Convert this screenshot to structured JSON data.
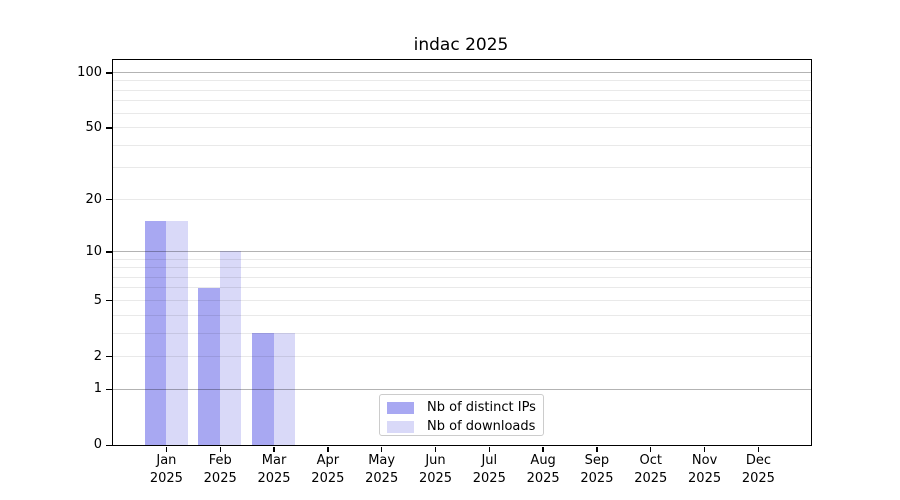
{
  "title": "indac 2025",
  "chart_data": {
    "type": "bar",
    "title": "indac 2025",
    "categories": [
      "Jan",
      "Feb",
      "Mar",
      "Apr",
      "May",
      "Jun",
      "Jul",
      "Aug",
      "Sep",
      "Oct",
      "Nov",
      "Dec"
    ],
    "year_label": "2025",
    "series": [
      {
        "name": "Nb of distinct IPs",
        "color": "#a8a8f2",
        "values": [
          15,
          6,
          3,
          0,
          0,
          0,
          0,
          0,
          0,
          0,
          0,
          0
        ]
      },
      {
        "name": "Nb of downloads",
        "color": "#d9d9f8",
        "values": [
          15,
          10,
          3,
          0,
          0,
          0,
          0,
          0,
          0,
          0,
          0,
          0
        ]
      }
    ],
    "y_scale": "log1p",
    "y_ticks": [
      0,
      1,
      2,
      5,
      10,
      20,
      50,
      100
    ],
    "ylim": [
      0,
      117
    ],
    "grid_major": [
      1,
      10,
      100
    ],
    "grid_minor": [
      2,
      3,
      4,
      5,
      6,
      7,
      8,
      9,
      20,
      30,
      40,
      50,
      60,
      70,
      80,
      90
    ],
    "grid": "on",
    "legend_position": "inside-bottom-center",
    "xlabel": "",
    "ylabel": ""
  },
  "legend": {
    "items": [
      {
        "label": "Nb of distinct IPs",
        "color": "#a8a8f2"
      },
      {
        "label": "Nb of downloads",
        "color": "#d9d9f8"
      }
    ]
  },
  "colors": {
    "bar_distinct_ips": "#a8a8f2",
    "bar_downloads": "#d9d9f8",
    "grid_major": "#b3b3b3",
    "grid_minor": "#e9e9e9",
    "spine": "#000000",
    "legend_border": "#cccccc",
    "text": "#000000"
  }
}
